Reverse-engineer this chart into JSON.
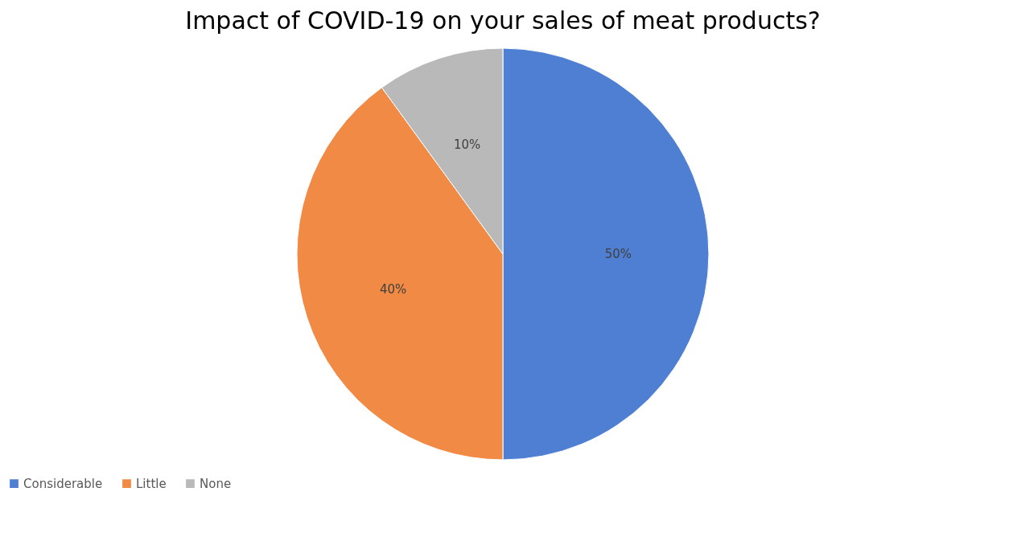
{
  "chart_data": {
    "type": "pie",
    "title": "Impact of COVID-19 on your sales of meat products?",
    "categories": [
      "Considerable",
      "Little",
      "None"
    ],
    "values": [
      50,
      40,
      10
    ],
    "colors": [
      "#4f7fd3",
      "#f08a44",
      "#b9b9b9"
    ],
    "value_labels": [
      "50%",
      "40%",
      "10%"
    ],
    "legend": "bottom"
  }
}
